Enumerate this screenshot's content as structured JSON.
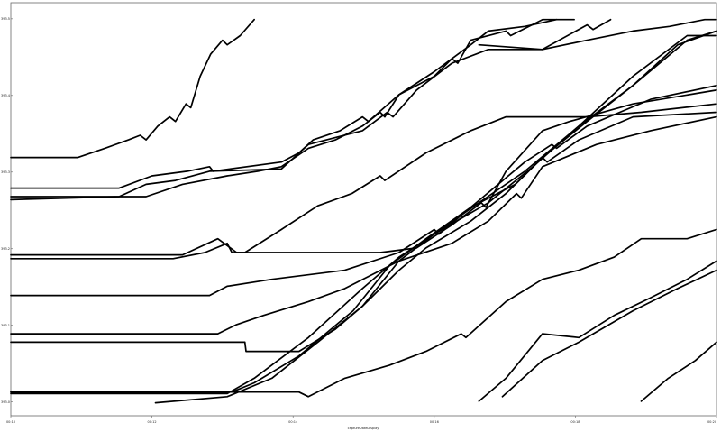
{
  "chart_data": {
    "type": "line",
    "xlabel": "captureDateDisplay",
    "xlim": [
      "00:10:00",
      "00:20:00"
    ],
    "ylim": [
      392.982,
      393.521
    ],
    "xticks": [
      "00:10",
      "00:12",
      "00:14",
      "00:16",
      "00:18",
      "00:20"
    ],
    "yticks": [
      "393.0",
      "393.1",
      "393.2",
      "393.3",
      "393.4",
      "393.5"
    ],
    "grid": false,
    "line_color": "#000000",
    "series": [
      {
        "points": [
          [
            "00:10:00",
            393.319
          ],
          [
            "00:10:57",
            393.319
          ],
          [
            "00:11:20",
            393.331
          ],
          [
            "00:11:40",
            393.342
          ],
          [
            "00:11:50",
            393.348
          ],
          [
            "00:11:55",
            393.342
          ],
          [
            "00:12:05",
            393.36
          ],
          [
            "00:12:15",
            393.372
          ],
          [
            "00:12:20",
            393.366
          ],
          [
            "00:12:29",
            393.389
          ],
          [
            "00:12:33",
            393.384
          ],
          [
            "00:12:41",
            393.425
          ],
          [
            "00:12:50",
            393.454
          ],
          [
            "00:13:00",
            393.472
          ],
          [
            "00:13:04",
            393.466
          ],
          [
            "00:13:15",
            393.478
          ],
          [
            "00:13:27",
            393.499
          ]
        ]
      },
      {
        "points": [
          [
            "00:10:00",
            393.279
          ],
          [
            "00:11:32",
            393.279
          ],
          [
            "00:12:00",
            393.295
          ],
          [
            "00:12:30",
            393.301
          ],
          [
            "00:12:49",
            393.307
          ],
          [
            "00:12:52",
            393.301
          ],
          [
            "00:13:50",
            393.313
          ],
          [
            "00:14:05",
            393.325
          ],
          [
            "00:14:17",
            393.342
          ],
          [
            "00:14:40",
            393.354
          ],
          [
            "00:14:59",
            393.372
          ],
          [
            "00:15:04",
            393.366
          ],
          [
            "00:15:30",
            393.401
          ],
          [
            "00:16:00",
            393.425
          ],
          [
            "00:16:15",
            393.448
          ],
          [
            "00:16:20",
            393.442
          ],
          [
            "00:16:31",
            393.472
          ],
          [
            "00:17:01",
            393.484
          ],
          [
            "00:17:05",
            393.478
          ],
          [
            "00:17:32",
            393.499
          ],
          [
            "00:17:59",
            393.499
          ]
        ]
      },
      {
        "points": [
          [
            "00:10:00",
            393.268
          ],
          [
            "00:11:55",
            393.268
          ],
          [
            "00:12:26",
            393.284
          ],
          [
            "00:13:04",
            393.295
          ],
          [
            "00:13:30",
            393.301
          ],
          [
            "00:13:50",
            393.307
          ],
          [
            "00:14:13",
            393.331
          ],
          [
            "00:14:36",
            393.342
          ],
          [
            "00:14:59",
            393.36
          ],
          [
            "00:15:14",
            393.378
          ],
          [
            "00:15:18",
            393.372
          ],
          [
            "00:15:30",
            393.401
          ],
          [
            "00:16:00",
            393.431
          ],
          [
            "00:16:31",
            393.466
          ],
          [
            "00:16:46",
            393.484
          ],
          [
            "00:17:17",
            393.49
          ],
          [
            "00:17:44",
            393.499
          ]
        ]
      },
      {
        "points": [
          [
            "00:10:00",
            393.264
          ],
          [
            "00:11:32",
            393.268
          ],
          [
            "00:11:55",
            393.284
          ],
          [
            "00:12:20",
            393.289
          ],
          [
            "00:12:49",
            393.301
          ],
          [
            "00:13:50",
            393.304
          ],
          [
            "00:14:13",
            393.336
          ],
          [
            "00:14:59",
            393.354
          ],
          [
            "00:15:20",
            393.378
          ],
          [
            "00:15:25",
            393.372
          ],
          [
            "00:15:45",
            393.407
          ],
          [
            "00:16:15",
            393.442
          ],
          [
            "00:16:46",
            393.46
          ],
          [
            "00:17:32",
            393.46
          ],
          [
            "00:18:10",
            393.492
          ],
          [
            "00:18:15",
            393.486
          ],
          [
            "00:18:30",
            393.499
          ]
        ]
      },
      {
        "points": [
          [
            "00:16:38",
            393.466
          ],
          [
            "00:17:32",
            393.46
          ],
          [
            "00:18:10",
            393.472
          ],
          [
            "00:18:49",
            393.484
          ],
          [
            "00:19:20",
            393.49
          ],
          [
            "00:19:50",
            393.499
          ],
          [
            "00:20:00",
            393.499
          ]
        ]
      },
      {
        "points": [
          [
            "00:10:00",
            393.187
          ],
          [
            "00:12:18",
            393.187
          ],
          [
            "00:12:45",
            393.195
          ],
          [
            "00:13:04",
            393.207
          ],
          [
            "00:13:08",
            393.195
          ],
          [
            "00:13:19",
            393.195
          ],
          [
            "00:13:50",
            393.225
          ],
          [
            "00:14:21",
            393.256
          ],
          [
            "00:14:50",
            393.272
          ],
          [
            "00:15:14",
            393.295
          ],
          [
            "00:15:18",
            393.289
          ],
          [
            "00:15:53",
            393.325
          ],
          [
            "00:16:31",
            393.354
          ],
          [
            "00:17:01",
            393.372
          ],
          [
            "00:18:10",
            393.372
          ],
          [
            "00:18:56",
            393.378
          ],
          [
            "00:20:00",
            393.389
          ]
        ]
      },
      {
        "points": [
          [
            "00:10:00",
            393.192
          ],
          [
            "00:12:26",
            393.192
          ],
          [
            "00:12:56",
            393.213
          ],
          [
            "00:13:12",
            393.195
          ],
          [
            "00:14:05",
            393.195
          ],
          [
            "00:15:14",
            393.195
          ],
          [
            "00:15:45",
            393.201
          ],
          [
            "00:16:15",
            393.231
          ],
          [
            "00:16:40",
            393.26
          ],
          [
            "00:16:44",
            393.254
          ],
          [
            "00:17:01",
            393.301
          ],
          [
            "00:17:32",
            393.354
          ],
          [
            "00:17:55",
            393.366
          ],
          [
            "00:18:49",
            393.389
          ],
          [
            "00:20:00",
            393.407
          ]
        ]
      },
      {
        "points": [
          [
            "00:10:00",
            393.139
          ],
          [
            "00:12:49",
            393.139
          ],
          [
            "00:13:04",
            393.151
          ],
          [
            "00:13:42",
            393.16
          ],
          [
            "00:14:44",
            393.172
          ],
          [
            "00:15:30",
            393.195
          ],
          [
            "00:16:00",
            393.225
          ],
          [
            "00:16:04",
            393.219
          ],
          [
            "00:16:31",
            393.254
          ],
          [
            "00:17:17",
            393.313
          ],
          [
            "00:17:40",
            393.336
          ],
          [
            "00:17:44",
            393.331
          ],
          [
            "00:18:10",
            393.36
          ],
          [
            "00:19:04",
            393.395
          ],
          [
            "00:20:00",
            393.413
          ]
        ]
      },
      {
        "points": [
          [
            "00:10:00",
            393.089
          ],
          [
            "00:12:56",
            393.089
          ],
          [
            "00:13:12",
            393.101
          ],
          [
            "00:13:35",
            393.113
          ],
          [
            "00:14:13",
            393.131
          ],
          [
            "00:14:44",
            393.148
          ],
          [
            "00:15:30",
            393.184
          ],
          [
            "00:16:15",
            393.207
          ],
          [
            "00:16:46",
            393.236
          ],
          [
            "00:17:10",
            393.272
          ],
          [
            "00:17:14",
            393.266
          ],
          [
            "00:17:32",
            393.307
          ],
          [
            "00:18:18",
            393.336
          ],
          [
            "00:19:04",
            393.354
          ],
          [
            "00:20:00",
            393.372
          ]
        ]
      },
      {
        "points": [
          [
            "00:10:00",
            393.078
          ],
          [
            "00:13:19",
            393.078
          ],
          [
            "00:13:20",
            393.066
          ],
          [
            "00:14:05",
            393.066
          ],
          [
            "00:14:36",
            393.095
          ],
          [
            "00:14:59",
            393.125
          ],
          [
            "00:15:30",
            393.172
          ],
          [
            "00:15:53",
            393.201
          ],
          [
            "00:16:31",
            393.236
          ],
          [
            "00:17:01",
            393.272
          ],
          [
            "00:17:32",
            393.319
          ],
          [
            "00:17:36",
            393.313
          ],
          [
            "00:18:03",
            393.342
          ],
          [
            "00:18:49",
            393.372
          ],
          [
            "00:20:00",
            393.378
          ]
        ]
      },
      {
        "points": [
          [
            "00:10:00",
            393.013
          ],
          [
            "00:13:08",
            393.013
          ],
          [
            "00:13:27",
            393.025
          ],
          [
            "00:14:05",
            393.06
          ],
          [
            "00:14:51",
            393.119
          ],
          [
            "00:15:22",
            393.178
          ],
          [
            "00:15:53",
            393.213
          ],
          [
            "00:16:31",
            393.254
          ],
          [
            "00:17:09",
            393.284
          ],
          [
            "00:17:32",
            393.319
          ],
          [
            "00:18:10",
            393.366
          ],
          [
            "00:18:49",
            393.413
          ],
          [
            "00:19:27",
            393.466
          ],
          [
            "00:20:00",
            393.484
          ]
        ]
      },
      {
        "points": [
          [
            "00:10:00",
            393.011
          ],
          [
            "00:13:04",
            393.011
          ],
          [
            "00:13:27",
            393.031
          ],
          [
            "00:14:13",
            393.084
          ],
          [
            "00:14:59",
            393.148
          ],
          [
            "00:15:30",
            393.189
          ],
          [
            "00:16:00",
            393.219
          ],
          [
            "00:16:46",
            393.26
          ],
          [
            "00:17:24",
            393.307
          ],
          [
            "00:18:03",
            393.36
          ],
          [
            "00:18:49",
            393.425
          ],
          [
            "00:19:35",
            393.478
          ],
          [
            "00:20:00",
            393.478
          ]
        ]
      },
      {
        "points": [
          [
            "00:12:03",
            392.999
          ],
          [
            "00:13:04",
            393.007
          ],
          [
            "00:13:42",
            393.031
          ],
          [
            "00:14:21",
            393.078
          ],
          [
            "00:14:59",
            393.125
          ],
          [
            "00:15:30",
            393.184
          ],
          [
            "00:16:00",
            393.219
          ],
          [
            "00:16:38",
            393.26
          ],
          [
            "00:17:17",
            393.301
          ],
          [
            "00:18:03",
            393.36
          ],
          [
            "00:18:49",
            393.413
          ],
          [
            "00:19:35",
            393.472
          ],
          [
            "00:20:00",
            393.484
          ]
        ]
      },
      {
        "points": [
          [
            "00:10:00",
            393.013
          ],
          [
            "00:14:05",
            393.013
          ],
          [
            "00:14:13",
            393.007
          ],
          [
            "00:14:44",
            393.031
          ],
          [
            "00:15:22",
            393.048
          ],
          [
            "00:15:53",
            393.066
          ],
          [
            "00:16:23",
            393.089
          ],
          [
            "00:16:27",
            393.084
          ],
          [
            "00:17:01",
            393.131
          ],
          [
            "00:17:32",
            393.16
          ],
          [
            "00:18:03",
            393.172
          ],
          [
            "00:18:33",
            393.189
          ],
          [
            "00:18:56",
            393.213
          ],
          [
            "00:19:35",
            393.213
          ],
          [
            "00:20:00",
            393.225
          ]
        ]
      },
      {
        "points": [
          [
            "00:16:38",
            393.001
          ],
          [
            "00:17:01",
            393.031
          ],
          [
            "00:17:32",
            393.089
          ],
          [
            "00:18:03",
            393.084
          ],
          [
            "00:18:33",
            393.113
          ],
          [
            "00:19:04",
            393.136
          ],
          [
            "00:19:35",
            393.16
          ],
          [
            "00:20:00",
            393.184
          ]
        ]
      },
      {
        "points": [
          [
            "00:16:58",
            393.007
          ],
          [
            "00:17:32",
            393.054
          ],
          [
            "00:18:03",
            393.078
          ],
          [
            "00:18:49",
            393.119
          ],
          [
            "00:19:27",
            393.148
          ],
          [
            "00:20:00",
            393.172
          ]
        ]
      },
      {
        "points": [
          [
            "00:18:56",
            393.001
          ],
          [
            "00:19:19",
            393.031
          ],
          [
            "00:19:42",
            393.054
          ],
          [
            "00:20:00",
            393.078
          ]
        ]
      }
    ]
  }
}
